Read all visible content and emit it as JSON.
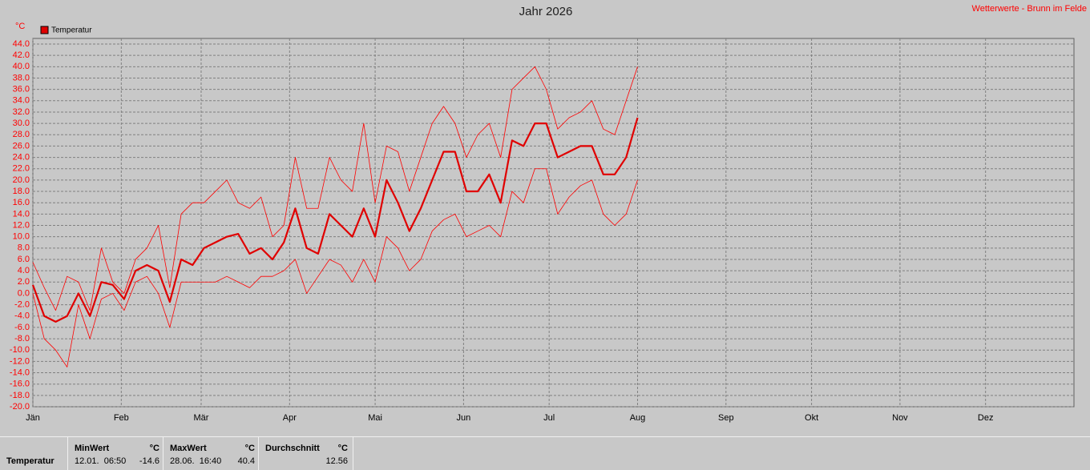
{
  "chart_data": {
    "type": "line",
    "title": "Jahr 2026",
    "source": "Wetterwerte - Brunn im Felde",
    "y_unit": "°C",
    "legend": "Temperatur",
    "legend_color": "#e00000",
    "grid": true,
    "xlim": [
      0,
      365
    ],
    "xticks": [
      {
        "value": 0,
        "label": "Jän"
      },
      {
        "value": 31,
        "label": "Feb"
      },
      {
        "value": 59,
        "label": "Mär"
      },
      {
        "value": 90,
        "label": "Apr"
      },
      {
        "value": 120,
        "label": "Mai"
      },
      {
        "value": 151,
        "label": "Jun"
      },
      {
        "value": 181,
        "label": "Jul"
      },
      {
        "value": 212,
        "label": "Aug"
      },
      {
        "value": 243,
        "label": "Sep"
      },
      {
        "value": 273,
        "label": "Okt"
      },
      {
        "value": 304,
        "label": "Nov"
      },
      {
        "value": 334,
        "label": "Dez"
      }
    ],
    "ylim": [
      -20,
      44
    ],
    "yticks": [
      {
        "value": 44,
        "label": "44.0"
      },
      {
        "value": 42,
        "label": "42.0"
      },
      {
        "value": 40,
        "label": "40.0"
      },
      {
        "value": 38,
        "label": "38.0"
      },
      {
        "value": 36,
        "label": "36.0"
      },
      {
        "value": 34,
        "label": "34.0"
      },
      {
        "value": 32,
        "label": "32.0"
      },
      {
        "value": 30,
        "label": "30.0"
      },
      {
        "value": 28,
        "label": "28.0"
      },
      {
        "value": 26,
        "label": "26.0"
      },
      {
        "value": 24,
        "label": "24.0"
      },
      {
        "value": 22,
        "label": "22.0"
      },
      {
        "value": 20,
        "label": "20.0"
      },
      {
        "value": 18,
        "label": "18.0"
      },
      {
        "value": 16,
        "label": "16.0"
      },
      {
        "value": 14,
        "label": "14.0"
      },
      {
        "value": 12,
        "label": "12.0"
      },
      {
        "value": 10,
        "label": "10.0"
      },
      {
        "value": 8,
        "label": "8.0"
      },
      {
        "value": 6,
        "label": "6.0"
      },
      {
        "value": 4,
        "label": "4.0"
      },
      {
        "value": 2,
        "label": "2.0"
      },
      {
        "value": 0,
        "label": "0.0"
      },
      {
        "value": -2,
        "label": "-2.0"
      },
      {
        "value": -4,
        "label": "-4.0"
      },
      {
        "value": -6,
        "label": "-6.0"
      },
      {
        "value": -8,
        "label": "-8.0"
      },
      {
        "value": -10,
        "label": "-10.0"
      },
      {
        "value": -12,
        "label": "-12.0"
      },
      {
        "value": -14,
        "label": "-14.0"
      },
      {
        "value": -16,
        "label": "-16.0"
      },
      {
        "value": -18,
        "label": "-18.0"
      },
      {
        "value": -20,
        "label": "-20.0"
      }
    ],
    "x": [
      0,
      4,
      8,
      12,
      16,
      20,
      24,
      28,
      32,
      36,
      40,
      44,
      48,
      52,
      56,
      60,
      64,
      68,
      72,
      76,
      80,
      84,
      88,
      92,
      96,
      100,
      104,
      108,
      112,
      116,
      120,
      124,
      128,
      132,
      136,
      140,
      144,
      148,
      152,
      156,
      160,
      164,
      168,
      172,
      176,
      180,
      184,
      188,
      192,
      196,
      200,
      204,
      208,
      212
    ],
    "series": [
      {
        "color": "#ff0000",
        "width": 0.8,
        "values": [
          5.5,
          1,
          -3,
          3,
          2,
          -3,
          8,
          2,
          0,
          6,
          8,
          12,
          1,
          14,
          16,
          16,
          18,
          20,
          16,
          15,
          17,
          10,
          12,
          24,
          15,
          15,
          24,
          20,
          18,
          30,
          16,
          26,
          25,
          18,
          24,
          30,
          33,
          30,
          24,
          28,
          30,
          24,
          36,
          38,
          40,
          36,
          29,
          31,
          32,
          34,
          29,
          28,
          34,
          40
        ]
      },
      {
        "color": "#ff0000",
        "width": 0.8,
        "values": [
          0,
          -8,
          -10,
          -13,
          -2,
          -8,
          -1,
          0,
          -3,
          2,
          3,
          0,
          -6,
          2,
          2,
          2,
          2,
          3,
          2,
          1,
          3,
          3,
          4,
          6,
          0,
          3,
          6,
          5,
          2,
          6,
          2,
          10,
          8,
          4,
          6,
          11,
          13,
          14,
          10,
          11,
          12,
          10,
          18,
          16,
          22,
          22,
          14,
          17,
          19,
          20,
          14,
          12,
          14,
          20
        ]
      },
      {
        "color": "#e00000",
        "width": 2.2,
        "values": [
          1.5,
          -4,
          -5,
          -4,
          0,
          -4,
          2,
          1.5,
          -1,
          4,
          5,
          4,
          -1.5,
          6,
          5,
          8,
          9,
          10,
          10.5,
          7,
          8,
          6,
          9,
          15,
          8,
          7,
          14,
          12,
          10,
          15,
          10,
          20,
          16,
          11,
          15,
          20,
          25,
          25,
          18,
          18,
          21,
          16,
          27,
          26,
          30,
          30,
          24,
          25,
          26,
          26,
          21,
          21,
          24,
          31
        ]
      }
    ]
  },
  "stats": {
    "row_label": "Temperatur",
    "columns": [
      {
        "header": "MinWert",
        "unit": "°C",
        "date": "12.01.  06:50",
        "value": "-14.6"
      },
      {
        "header": "MaxWert",
        "unit": "°C",
        "date": "28.06.  16:40",
        "value": "40.4"
      },
      {
        "header": "Durchschnitt",
        "unit": "°C",
        "value": "12.56"
      }
    ]
  }
}
